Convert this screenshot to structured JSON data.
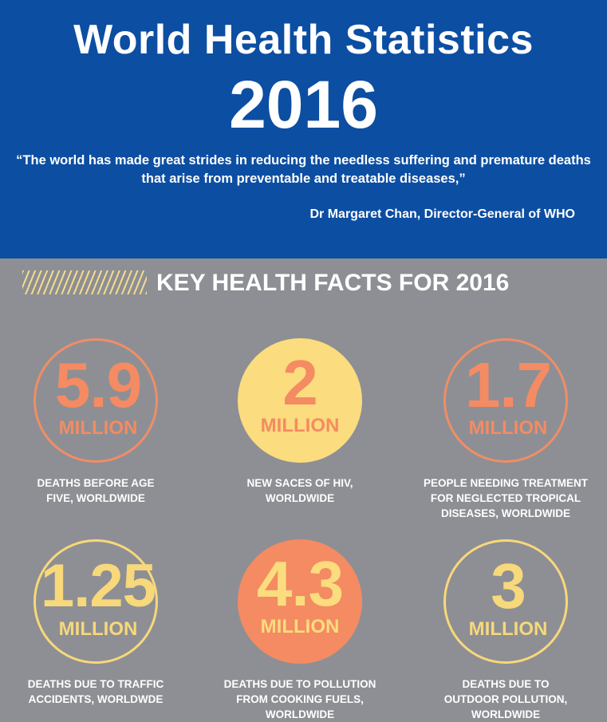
{
  "header": {
    "title": "World Health Statistics",
    "year": "2016",
    "quote": "“The world has made great strides in reducing the needless suffering and premature deaths that arise from preventable and treatable diseases,”",
    "attribution": "Dr Margaret Chan, Director-General of WHO"
  },
  "facts_heading": "KEY HEALTH FACTS FOR 2016",
  "facts": [
    {
      "value": "5.9",
      "unit": "MILLION",
      "caption": "DEATHS BEFORE AGE FIVE, WORLDWIDE"
    },
    {
      "value": "2",
      "unit": "MILLION",
      "caption": "NEW SACES OF HIV, WORLDWIDE"
    },
    {
      "value": "1.7",
      "unit": "MILLION",
      "caption": "PEOPLE NEEDING TREATMENT FOR NEGLECTED TROPICAL DISEASES, WORLDWIDE"
    },
    {
      "value": "1.25",
      "unit": "MILLION",
      "caption": "DEATHS DUE TO TRAFFIC ACCIDENTS, WORLDWDE"
    },
    {
      "value": "4.3",
      "unit": "MILLION",
      "caption": "DEATHS DUE TO POLLUTION FROM COOKING FUELS, WORLDWIDE"
    },
    {
      "value": "3",
      "unit": "MILLION",
      "caption": "DEATHS DUE TO OUTDOOR POLLUTION, WORLDWIDE"
    }
  ],
  "colors": {
    "header_bg": "#0c4ea2",
    "body_bg": "#8e8f94",
    "accent_orange": "#f48b62",
    "accent_yellow": "#fbdc7e"
  }
}
